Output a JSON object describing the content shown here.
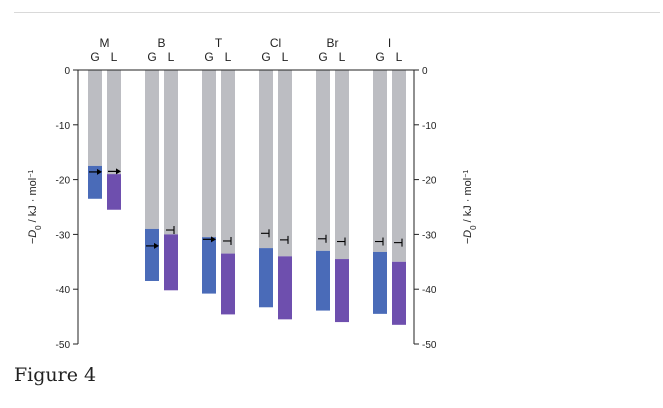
{
  "caption": "Figure 4",
  "chart_data": {
    "type": "bar",
    "categories": [
      "M",
      "B",
      "T",
      "Cl",
      "Br",
      "I"
    ],
    "sublabels": [
      "G",
      "L"
    ],
    "ylim": [
      -50,
      0
    ],
    "yticks": [
      0,
      -10,
      -20,
      -30,
      -40,
      -50
    ],
    "ylabel_left": "−D0 / kJ · mol⁻¹",
    "ylabel_right": "−D0 / kJ · mol⁻¹",
    "ylabel_main": "−D",
    "ylabel_sub": "0",
    "ylabel_rest": " / kJ · mol",
    "ylabel_sup": "−1",
    "series": [
      {
        "name": "G",
        "color": "#4a6bb8",
        "total": [
          -23.5,
          -38.5,
          -40.8,
          -43.3,
          -43.9,
          -44.5
        ],
        "colored_from": [
          -17.5,
          -29.0,
          -30.5,
          -32.5,
          -33.0,
          -33.2
        ],
        "markers": [
          "arrow",
          "arrow",
          "arrow",
          "tbar",
          "tbar",
          "tbar"
        ],
        "marker_y": [
          -18.6,
          -32.1,
          -30.9,
          -29.8,
          -30.8,
          -31.3
        ]
      },
      {
        "name": "L",
        "color": "#6e4fae",
        "total": [
          -25.5,
          -40.2,
          -44.6,
          -45.5,
          -46.0,
          -46.5
        ],
        "colored_from": [
          -19.0,
          -30.0,
          -33.5,
          -34.0,
          -34.5,
          -35.0
        ],
        "markers": [
          "arrow",
          "tbar",
          "tbar",
          "tbar",
          "tbar",
          "tbar"
        ],
        "marker_y": [
          -18.5,
          -29.2,
          -31.2,
          -31.0,
          -31.3,
          -31.5
        ]
      }
    ],
    "background_color": "#bcbdc2",
    "grid": false
  }
}
